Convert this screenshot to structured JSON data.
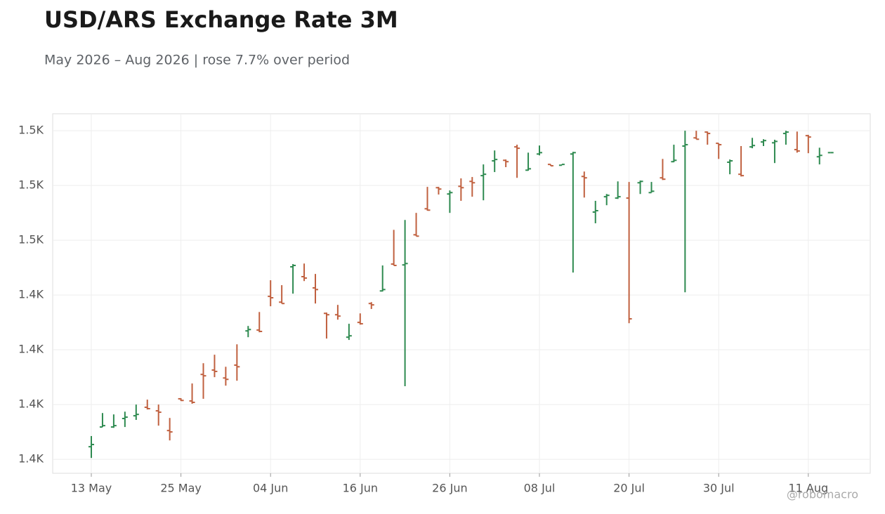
{
  "chart_data": {
    "type": "ohlc",
    "title": "USD/ARS Exchange Rate 3M",
    "subtitle": "May 2026 – Aug 2026 | rose 7.7% over period",
    "watermark": "@robomacro",
    "categories": [
      "13 May",
      null,
      null,
      null,
      null,
      null,
      null,
      null,
      "25 May",
      null,
      null,
      null,
      null,
      null,
      null,
      null,
      "04 Jun",
      null,
      null,
      null,
      null,
      null,
      null,
      null,
      "16 Jun",
      null,
      null,
      null,
      null,
      null,
      null,
      null,
      "26 Jun",
      null,
      null,
      null,
      null,
      null,
      null,
      null,
      "08 Jul",
      null,
      null,
      null,
      null,
      null,
      null,
      null,
      "20 Jul",
      null,
      null,
      null,
      null,
      null,
      null,
      null,
      "30 Jul",
      null,
      null,
      null,
      null,
      null,
      null,
      null,
      "11 Aug",
      null,
      null
    ],
    "open": [
      1384.6,
      1391.8,
      1391.8,
      1394.9,
      1395.9,
      1399.0,
      1397.7,
      1390.5,
      1402.1,
      1401.3,
      1411.0,
      1412.6,
      1409.7,
      1414.4,
      1426.9,
      1427.2,
      1439.5,
      1437.4,
      1450.3,
      1446.7,
      1442.6,
      1433.3,
      1432.8,
      1424.6,
      1430.0,
      1436.9,
      1441.5,
      1451.3,
      1451.0,
      1462.0,
      1471.5,
      1479.2,
      1476.9,
      1479.7,
      1481.5,
      1483.6,
      1489.0,
      1489.2,
      1494.1,
      1485.6,
      1491.5,
      1487.7,
      1487.4,
      1491.5,
      1483.3,
      1470.3,
      1475.9,
      1475.4,
      1475.4,
      1481.0,
      1477.4,
      1482.8,
      1488.7,
      1494.4,
      1497.4,
      1499.5,
      1495.4,
      1488.5,
      1484.1,
      1494.1,
      1495.9,
      1495.6,
      1499.0,
      1493.1,
      1498.2,
      1490.5,
      1492.0
    ],
    "high": [
      1388.5,
      1396.9,
      1396.4,
      1397.4,
      1400.0,
      1401.8,
      1400.0,
      1395.1,
      1402.3,
      1407.7,
      1415.1,
      1418.2,
      1413.8,
      1422.0,
      1428.7,
      1433.8,
      1445.4,
      1443.6,
      1451.3,
      1451.5,
      1447.7,
      1433.6,
      1436.4,
      1429.5,
      1433.3,
      1437.4,
      1450.8,
      1463.8,
      1467.4,
      1470.0,
      1479.5,
      1479.5,
      1478.2,
      1482.6,
      1483.1,
      1487.7,
      1492.8,
      1489.5,
      1494.9,
      1492.0,
      1494.6,
      1487.7,
      1487.7,
      1492.3,
      1485.1,
      1474.4,
      1476.9,
      1481.5,
      1481.3,
      1481.8,
      1481.3,
      1489.7,
      1494.9,
      1500.0,
      1500.0,
      1499.7,
      1495.4,
      1489.5,
      1494.4,
      1497.4,
      1496.9,
      1496.7,
      1500.0,
      1499.7,
      1498.5,
      1493.8,
      1492.0
    ],
    "low": [
      1380.5,
      1391.8,
      1391.5,
      1391.8,
      1394.4,
      1398.2,
      1392.3,
      1386.9,
      1401.3,
      1400.3,
      1402.1,
      1410.0,
      1406.9,
      1408.7,
      1424.6,
      1426.4,
      1435.9,
      1436.9,
      1440.5,
      1445.1,
      1436.9,
      1424.1,
      1431.0,
      1423.6,
      1429.2,
      1434.9,
      1441.3,
      1450.8,
      1406.7,
      1461.5,
      1470.8,
      1476.7,
      1470.0,
      1474.4,
      1475.9,
      1474.6,
      1484.9,
      1486.7,
      1482.8,
      1485.4,
      1491.0,
      1487.2,
      1487.4,
      1448.2,
      1475.6,
      1466.2,
      1472.8,
      1475.1,
      1429.7,
      1476.9,
      1477.4,
      1482.0,
      1488.5,
      1441.0,
      1496.9,
      1494.9,
      1489.7,
      1484.1,
      1483.3,
      1493.6,
      1494.4,
      1488.2,
      1494.9,
      1492.0,
      1491.8,
      1487.7,
      1492.0
    ],
    "close": [
      1385.4,
      1392.3,
      1392.3,
      1395.4,
      1396.4,
      1398.5,
      1397.2,
      1390.0,
      1401.5,
      1400.8,
      1410.5,
      1412.1,
      1409.2,
      1413.8,
      1427.4,
      1426.7,
      1439.0,
      1436.9,
      1450.8,
      1446.2,
      1442.0,
      1432.8,
      1432.3,
      1425.1,
      1429.5,
      1436.4,
      1442.0,
      1450.8,
      1451.5,
      1461.5,
      1471.0,
      1478.7,
      1477.4,
      1479.2,
      1481.0,
      1484.1,
      1489.5,
      1488.7,
      1493.6,
      1486.1,
      1492.0,
      1487.2,
      1487.7,
      1492.0,
      1482.8,
      1470.8,
      1476.4,
      1475.9,
      1431.3,
      1481.5,
      1477.9,
      1482.3,
      1489.2,
      1494.9,
      1496.9,
      1499.0,
      1494.9,
      1489.0,
      1483.6,
      1494.6,
      1496.4,
      1496.1,
      1499.5,
      1492.6,
      1497.7,
      1491.0,
      1492.0
    ],
    "up_color": "#2e8a50",
    "down_color": "#c0603f",
    "ylim": [
      1374.9,
      1506.2
    ],
    "yticks": [
      {
        "value": 1380,
        "label": "1.4K"
      },
      {
        "value": 1400,
        "label": "1.4K"
      },
      {
        "value": 1420,
        "label": "1.4K"
      },
      {
        "value": 1440,
        "label": "1.4K"
      },
      {
        "value": 1460,
        "label": "1.5K"
      },
      {
        "value": 1480,
        "label": "1.5K"
      },
      {
        "value": 1500,
        "label": "1.5K"
      }
    ],
    "grid": true
  }
}
